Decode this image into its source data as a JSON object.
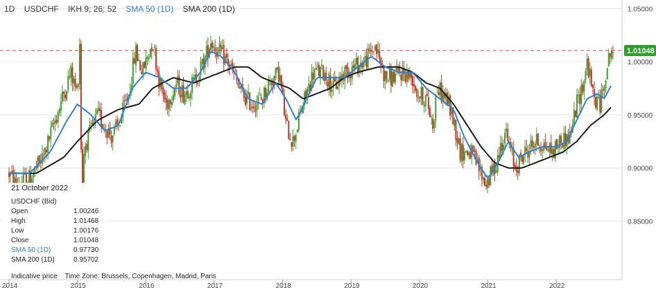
{
  "header": {
    "timeframe": "1D",
    "symbol": "USDCHF",
    "ikh": "IKH 9; 26; 52",
    "sma50": "SMA 50  (1D)",
    "sma200": "SMA 200  (1D)"
  },
  "info_panel": {
    "date": "21 October 2022",
    "instrument": "USDCHF (Bid)",
    "rows": [
      {
        "label": "Open",
        "value": "1.00246"
      },
      {
        "label": "High",
        "value": "1.01468"
      },
      {
        "label": "Low",
        "value": "1.00176"
      },
      {
        "label": "Close",
        "value": "1.01048"
      },
      {
        "label": "SMA 50  (1D)",
        "value": "0.97730"
      },
      {
        "label": "SMA 200  (1D)",
        "value": "0.95702"
      }
    ]
  },
  "footer": {
    "note": "Indicative price",
    "timezone": "Time Zone: Brussels, Copenhagen, Madrid, Paris"
  },
  "colors": {
    "up": "#3e9e2e",
    "down": "#c0392b",
    "sma50": "#2f7fd6",
    "sma200": "#1a1a1a",
    "price_line": "#d04040",
    "price_badge": "#2e9e2e"
  },
  "chart_data": {
    "type": "line",
    "title": "USDCHF",
    "timeframe": "1D",
    "y_axis": {
      "position": "right",
      "ylim": [
        0.795,
        1.058
      ],
      "ticks": [
        "1.05000",
        "1.00000",
        "0.95000",
        "0.90000",
        "0.85000"
      ],
      "tick_values": [
        1.05,
        1.0,
        0.95,
        0.9,
        0.85
      ]
    },
    "x_axis": {
      "xlim": [
        2014.0,
        2022.83
      ],
      "ticks": [
        "2014",
        "2015",
        "2016",
        "2017",
        "2018",
        "2019",
        "2020",
        "2021",
        "2022"
      ],
      "tick_values": [
        2014,
        2015,
        2016,
        2017,
        2018,
        2019,
        2020,
        2021,
        2022
      ]
    },
    "current_price": {
      "value": 1.01048,
      "label": "1.01048"
    },
    "grid": "horizontal",
    "price_anchors": [
      [
        2014.0,
        0.895
      ],
      [
        2014.1,
        0.885
      ],
      [
        2014.3,
        0.89
      ],
      [
        2014.5,
        0.91
      ],
      [
        2014.7,
        0.95
      ],
      [
        2014.9,
        0.99
      ],
      [
        2015.0,
        0.97
      ],
      [
        2015.04,
        1.03
      ],
      [
        2015.06,
        0.87
      ],
      [
        2015.1,
        0.92
      ],
      [
        2015.3,
        0.95
      ],
      [
        2015.5,
        0.93
      ],
      [
        2015.6,
        0.94
      ],
      [
        2015.75,
        0.97
      ],
      [
        2015.85,
        1.01
      ],
      [
        2015.95,
        0.99
      ],
      [
        2016.1,
        1.02
      ],
      [
        2016.2,
        0.98
      ],
      [
        2016.3,
        0.96
      ],
      [
        2016.45,
        0.98
      ],
      [
        2016.55,
        0.97
      ],
      [
        2016.7,
        0.98
      ],
      [
        2016.85,
        1.0
      ],
      [
        2016.95,
        1.02
      ],
      [
        2017.05,
        1.01
      ],
      [
        2017.2,
        1.0
      ],
      [
        2017.4,
        0.97
      ],
      [
        2017.55,
        0.96
      ],
      [
        2017.7,
        0.965
      ],
      [
        2017.8,
        0.98
      ],
      [
        2017.95,
        0.99
      ],
      [
        2018.05,
        0.94
      ],
      [
        2018.15,
        0.925
      ],
      [
        2018.3,
        0.96
      ],
      [
        2018.45,
        0.99
      ],
      [
        2018.6,
        0.99
      ],
      [
        2018.75,
        0.975
      ],
      [
        2018.9,
        0.99
      ],
      [
        2019.05,
        0.995
      ],
      [
        2019.2,
        1.0
      ],
      [
        2019.35,
        1.015
      ],
      [
        2019.5,
        0.985
      ],
      [
        2019.6,
        0.985
      ],
      [
        2019.75,
        0.99
      ],
      [
        2019.9,
        0.985
      ],
      [
        2019.97,
        0.97
      ],
      [
        2020.1,
        0.965
      ],
      [
        2020.2,
        0.94
      ],
      [
        2020.25,
        0.975
      ],
      [
        2020.4,
        0.965
      ],
      [
        2020.5,
        0.945
      ],
      [
        2020.6,
        0.915
      ],
      [
        2020.75,
        0.915
      ],
      [
        2020.9,
        0.895
      ],
      [
        2020.97,
        0.885
      ],
      [
        2021.1,
        0.9
      ],
      [
        2021.25,
        0.935
      ],
      [
        2021.4,
        0.9
      ],
      [
        2021.55,
        0.915
      ],
      [
        2021.7,
        0.925
      ],
      [
        2021.85,
        0.92
      ],
      [
        2021.95,
        0.915
      ],
      [
        2022.05,
        0.925
      ],
      [
        2022.2,
        0.93
      ],
      [
        2022.3,
        0.96
      ],
      [
        2022.4,
        0.98
      ],
      [
        2022.45,
        1.0
      ],
      [
        2022.55,
        0.965
      ],
      [
        2022.65,
        0.96
      ],
      [
        2022.72,
        0.99
      ],
      [
        2022.8,
        1.01048
      ]
    ],
    "sma50_anchors": [
      [
        2014.0,
        0.895
      ],
      [
        2014.3,
        0.895
      ],
      [
        2014.6,
        0.915
      ],
      [
        2014.85,
        0.945
      ],
      [
        2015.0,
        0.96
      ],
      [
        2015.2,
        0.95
      ],
      [
        2015.4,
        0.935
      ],
      [
        2015.6,
        0.94
      ],
      [
        2015.8,
        0.975
      ],
      [
        2016.0,
        0.99
      ],
      [
        2016.2,
        0.985
      ],
      [
        2016.4,
        0.975
      ],
      [
        2016.6,
        0.975
      ],
      [
        2016.8,
        0.99
      ],
      [
        2016.95,
        1.01
      ],
      [
        2017.1,
        1.005
      ],
      [
        2017.3,
        0.99
      ],
      [
        2017.5,
        0.965
      ],
      [
        2017.7,
        0.96
      ],
      [
        2017.9,
        0.98
      ],
      [
        2018.05,
        0.965
      ],
      [
        2018.2,
        0.945
      ],
      [
        2018.35,
        0.965
      ],
      [
        2018.5,
        0.985
      ],
      [
        2018.7,
        0.985
      ],
      [
        2018.9,
        0.985
      ],
      [
        2019.1,
        0.995
      ],
      [
        2019.3,
        1.005
      ],
      [
        2019.5,
        0.995
      ],
      [
        2019.7,
        0.99
      ],
      [
        2019.9,
        0.99
      ],
      [
        2020.1,
        0.975
      ],
      [
        2020.3,
        0.965
      ],
      [
        2020.5,
        0.955
      ],
      [
        2020.65,
        0.93
      ],
      [
        2020.85,
        0.905
      ],
      [
        2021.0,
        0.89
      ],
      [
        2021.15,
        0.905
      ],
      [
        2021.3,
        0.925
      ],
      [
        2021.45,
        0.91
      ],
      [
        2021.6,
        0.915
      ],
      [
        2021.8,
        0.92
      ],
      [
        2022.0,
        0.92
      ],
      [
        2022.15,
        0.925
      ],
      [
        2022.3,
        0.945
      ],
      [
        2022.45,
        0.965
      ],
      [
        2022.6,
        0.97
      ],
      [
        2022.7,
        0.965
      ],
      [
        2022.8,
        0.9773
      ]
    ],
    "sma200_anchors": [
      [
        2014.0,
        0.895
      ],
      [
        2014.4,
        0.895
      ],
      [
        2014.8,
        0.91
      ],
      [
        2015.0,
        0.925
      ],
      [
        2015.3,
        0.945
      ],
      [
        2015.6,
        0.955
      ],
      [
        2015.9,
        0.96
      ],
      [
        2016.1,
        0.975
      ],
      [
        2016.4,
        0.985
      ],
      [
        2016.7,
        0.98
      ],
      [
        2016.9,
        0.985
      ],
      [
        2017.1,
        0.99
      ],
      [
        2017.3,
        0.995
      ],
      [
        2017.5,
        0.995
      ],
      [
        2017.7,
        0.985
      ],
      [
        2017.9,
        0.98
      ],
      [
        2018.1,
        0.975
      ],
      [
        2018.3,
        0.965
      ],
      [
        2018.5,
        0.97
      ],
      [
        2018.7,
        0.975
      ],
      [
        2018.9,
        0.985
      ],
      [
        2019.1,
        0.99
      ],
      [
        2019.4,
        0.995
      ],
      [
        2019.7,
        0.995
      ],
      [
        2019.9,
        0.99
      ],
      [
        2020.1,
        0.98
      ],
      [
        2020.3,
        0.975
      ],
      [
        2020.5,
        0.96
      ],
      [
        2020.7,
        0.94
      ],
      [
        2020.9,
        0.92
      ],
      [
        2021.1,
        0.905
      ],
      [
        2021.3,
        0.9
      ],
      [
        2021.5,
        0.9
      ],
      [
        2021.7,
        0.905
      ],
      [
        2021.9,
        0.91
      ],
      [
        2022.1,
        0.915
      ],
      [
        2022.3,
        0.925
      ],
      [
        2022.5,
        0.94
      ],
      [
        2022.7,
        0.95
      ],
      [
        2022.8,
        0.95702
      ]
    ]
  }
}
